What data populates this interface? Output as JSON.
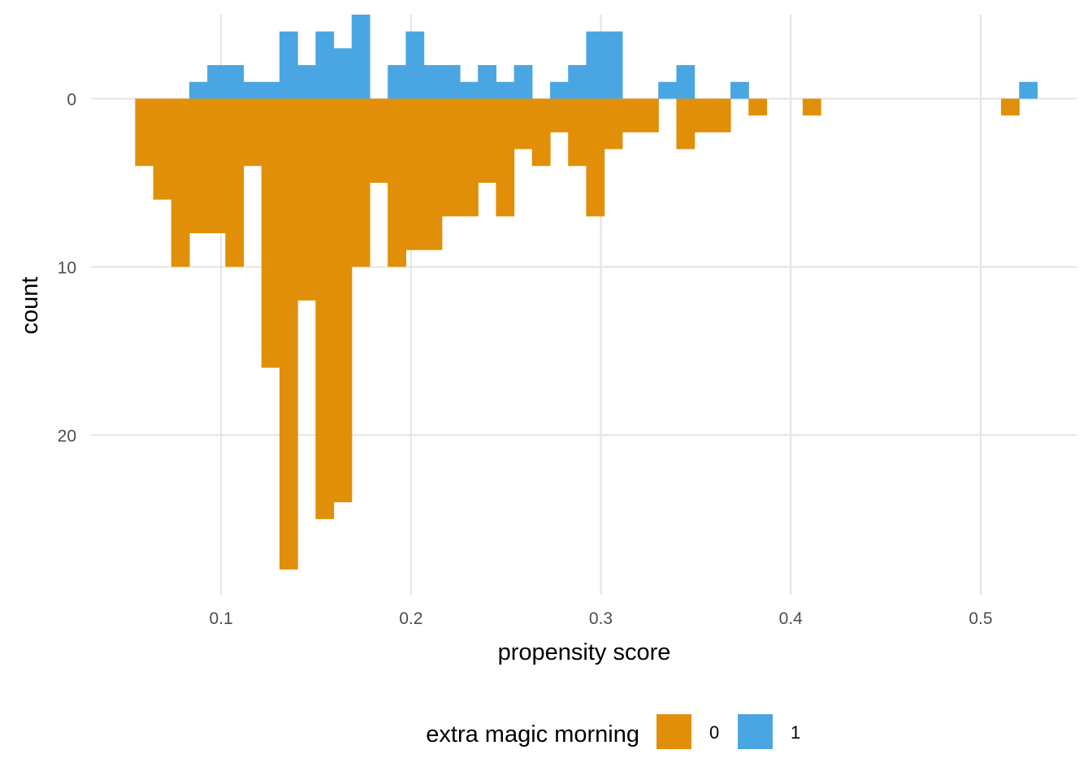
{
  "chart_data": {
    "type": "bar",
    "subtype": "mirrored-histogram",
    "xlabel": "propensity score",
    "ylabel": "count",
    "x_ticks": [
      0.1,
      0.2,
      0.3,
      0.4,
      0.5
    ],
    "x_tick_labels": [
      "0.1",
      "0.2",
      "0.3",
      "0.4",
      "0.5"
    ],
    "y_ticks": [
      0,
      10,
      20
    ],
    "y_tick_labels": [
      "0",
      "10",
      "20"
    ],
    "xlim": [
      0.0315,
      0.5505
    ],
    "ylim": [
      -5,
      29.5
    ],
    "y_axis_note": "group 1 counts drawn above zero, group 0 counts drawn below zero",
    "bin_width": 0.0095,
    "grid": true,
    "legend": {
      "title": "extra magic morning",
      "position": "bottom",
      "entries": [
        {
          "label": "0",
          "color": "#E18F08"
        },
        {
          "label": "1",
          "color": "#4AA6E3"
        }
      ]
    },
    "series": [
      {
        "name": "0",
        "color": "#E18F08",
        "direction": "down",
        "bins": [
          {
            "x": 0.0595,
            "count": 4
          },
          {
            "x": 0.069,
            "count": 6
          },
          {
            "x": 0.0785,
            "count": 10
          },
          {
            "x": 0.088,
            "count": 8
          },
          {
            "x": 0.0975,
            "count": 8
          },
          {
            "x": 0.107,
            "count": 10
          },
          {
            "x": 0.1165,
            "count": 4
          },
          {
            "x": 0.126,
            "count": 16
          },
          {
            "x": 0.1355,
            "count": 28
          },
          {
            "x": 0.145,
            "count": 12
          },
          {
            "x": 0.1545,
            "count": 25
          },
          {
            "x": 0.164,
            "count": 24
          },
          {
            "x": 0.1735,
            "count": 10
          },
          {
            "x": 0.183,
            "count": 5
          },
          {
            "x": 0.1925,
            "count": 10
          },
          {
            "x": 0.202,
            "count": 9
          },
          {
            "x": 0.2115,
            "count": 9
          },
          {
            "x": 0.221,
            "count": 7
          },
          {
            "x": 0.2305,
            "count": 7
          },
          {
            "x": 0.24,
            "count": 5
          },
          {
            "x": 0.2495,
            "count": 7
          },
          {
            "x": 0.259,
            "count": 3
          },
          {
            "x": 0.2685,
            "count": 4
          },
          {
            "x": 0.278,
            "count": 2
          },
          {
            "x": 0.2875,
            "count": 4
          },
          {
            "x": 0.297,
            "count": 7
          },
          {
            "x": 0.3065,
            "count": 3
          },
          {
            "x": 0.316,
            "count": 2
          },
          {
            "x": 0.3255,
            "count": 2
          },
          {
            "x": 0.335,
            "count": 0
          },
          {
            "x": 0.3445,
            "count": 3
          },
          {
            "x": 0.354,
            "count": 2
          },
          {
            "x": 0.3635,
            "count": 2
          },
          {
            "x": 0.3825,
            "count": 1
          },
          {
            "x": 0.411,
            "count": 1
          },
          {
            "x": 0.5155,
            "count": 1
          }
        ]
      },
      {
        "name": "1",
        "color": "#4AA6E3",
        "direction": "up",
        "bins": [
          {
            "x": 0.088,
            "count": 1
          },
          {
            "x": 0.0975,
            "count": 2
          },
          {
            "x": 0.107,
            "count": 2
          },
          {
            "x": 0.1165,
            "count": 1
          },
          {
            "x": 0.126,
            "count": 1
          },
          {
            "x": 0.1355,
            "count": 4
          },
          {
            "x": 0.145,
            "count": 2
          },
          {
            "x": 0.1545,
            "count": 4
          },
          {
            "x": 0.164,
            "count": 3
          },
          {
            "x": 0.1735,
            "count": 5
          },
          {
            "x": 0.1925,
            "count": 2
          },
          {
            "x": 0.202,
            "count": 4
          },
          {
            "x": 0.2115,
            "count": 2
          },
          {
            "x": 0.221,
            "count": 2
          },
          {
            "x": 0.2305,
            "count": 1
          },
          {
            "x": 0.24,
            "count": 2
          },
          {
            "x": 0.2495,
            "count": 1
          },
          {
            "x": 0.259,
            "count": 2
          },
          {
            "x": 0.278,
            "count": 1
          },
          {
            "x": 0.2875,
            "count": 2
          },
          {
            "x": 0.297,
            "count": 4
          },
          {
            "x": 0.3065,
            "count": 4
          },
          {
            "x": 0.335,
            "count": 1
          },
          {
            "x": 0.3445,
            "count": 2
          },
          {
            "x": 0.373,
            "count": 1
          },
          {
            "x": 0.525,
            "count": 1
          }
        ]
      }
    ]
  }
}
